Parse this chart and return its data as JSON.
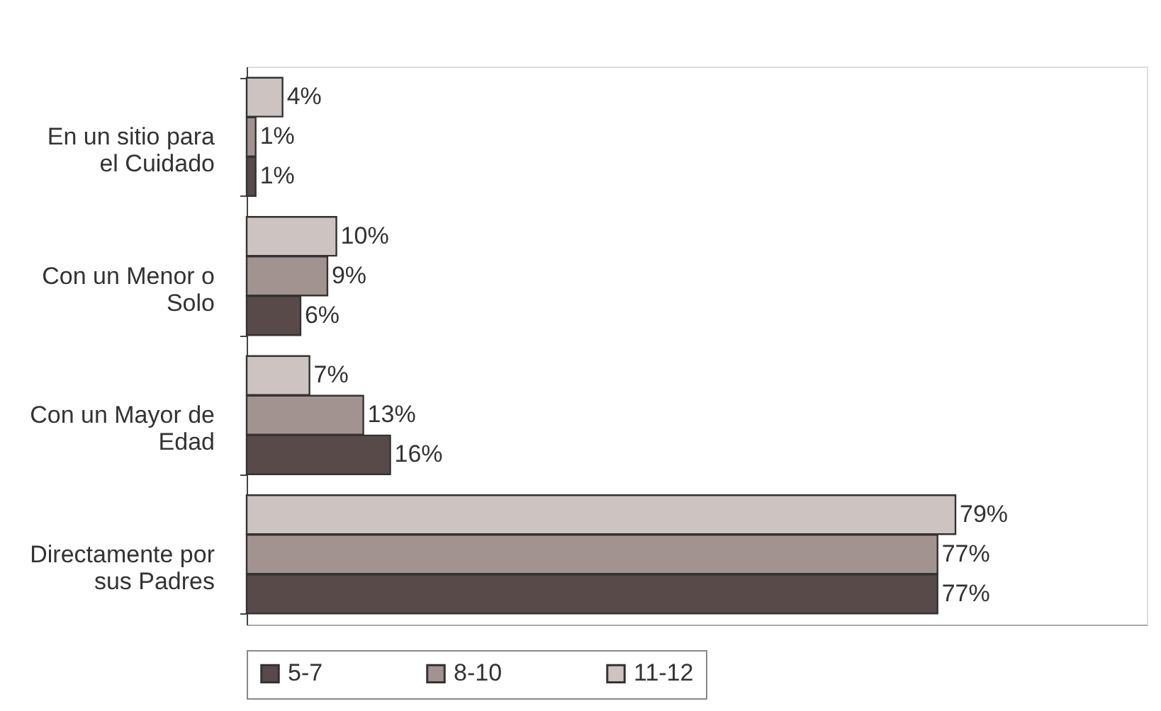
{
  "chart_data": {
    "type": "bar",
    "orientation": "horizontal",
    "legend": "bottom",
    "tick_labels": "y",
    "categories": [
      "En un sitio para el Cuidado",
      "Con un Menor o Solo",
      "Con un Mayor de Edad",
      "Directamente por sus Padres"
    ],
    "series": [
      {
        "name": "5-7",
        "color": "#574a49",
        "values": [
          1,
          6,
          16,
          77
        ],
        "value_labels": [
          "1%",
          "6%",
          "16%",
          "77%"
        ]
      },
      {
        "name": "8-10",
        "color": "#a39390",
        "values": [
          1,
          9,
          13,
          77
        ],
        "value_labels": [
          "1%",
          "9%",
          "13%",
          "77%"
        ]
      },
      {
        "name": "11-12",
        "color": "#cdc3c1",
        "values": [
          4,
          10,
          7,
          79
        ],
        "value_labels": [
          "4%",
          "10%",
          "7%",
          "79%"
        ]
      }
    ]
  }
}
